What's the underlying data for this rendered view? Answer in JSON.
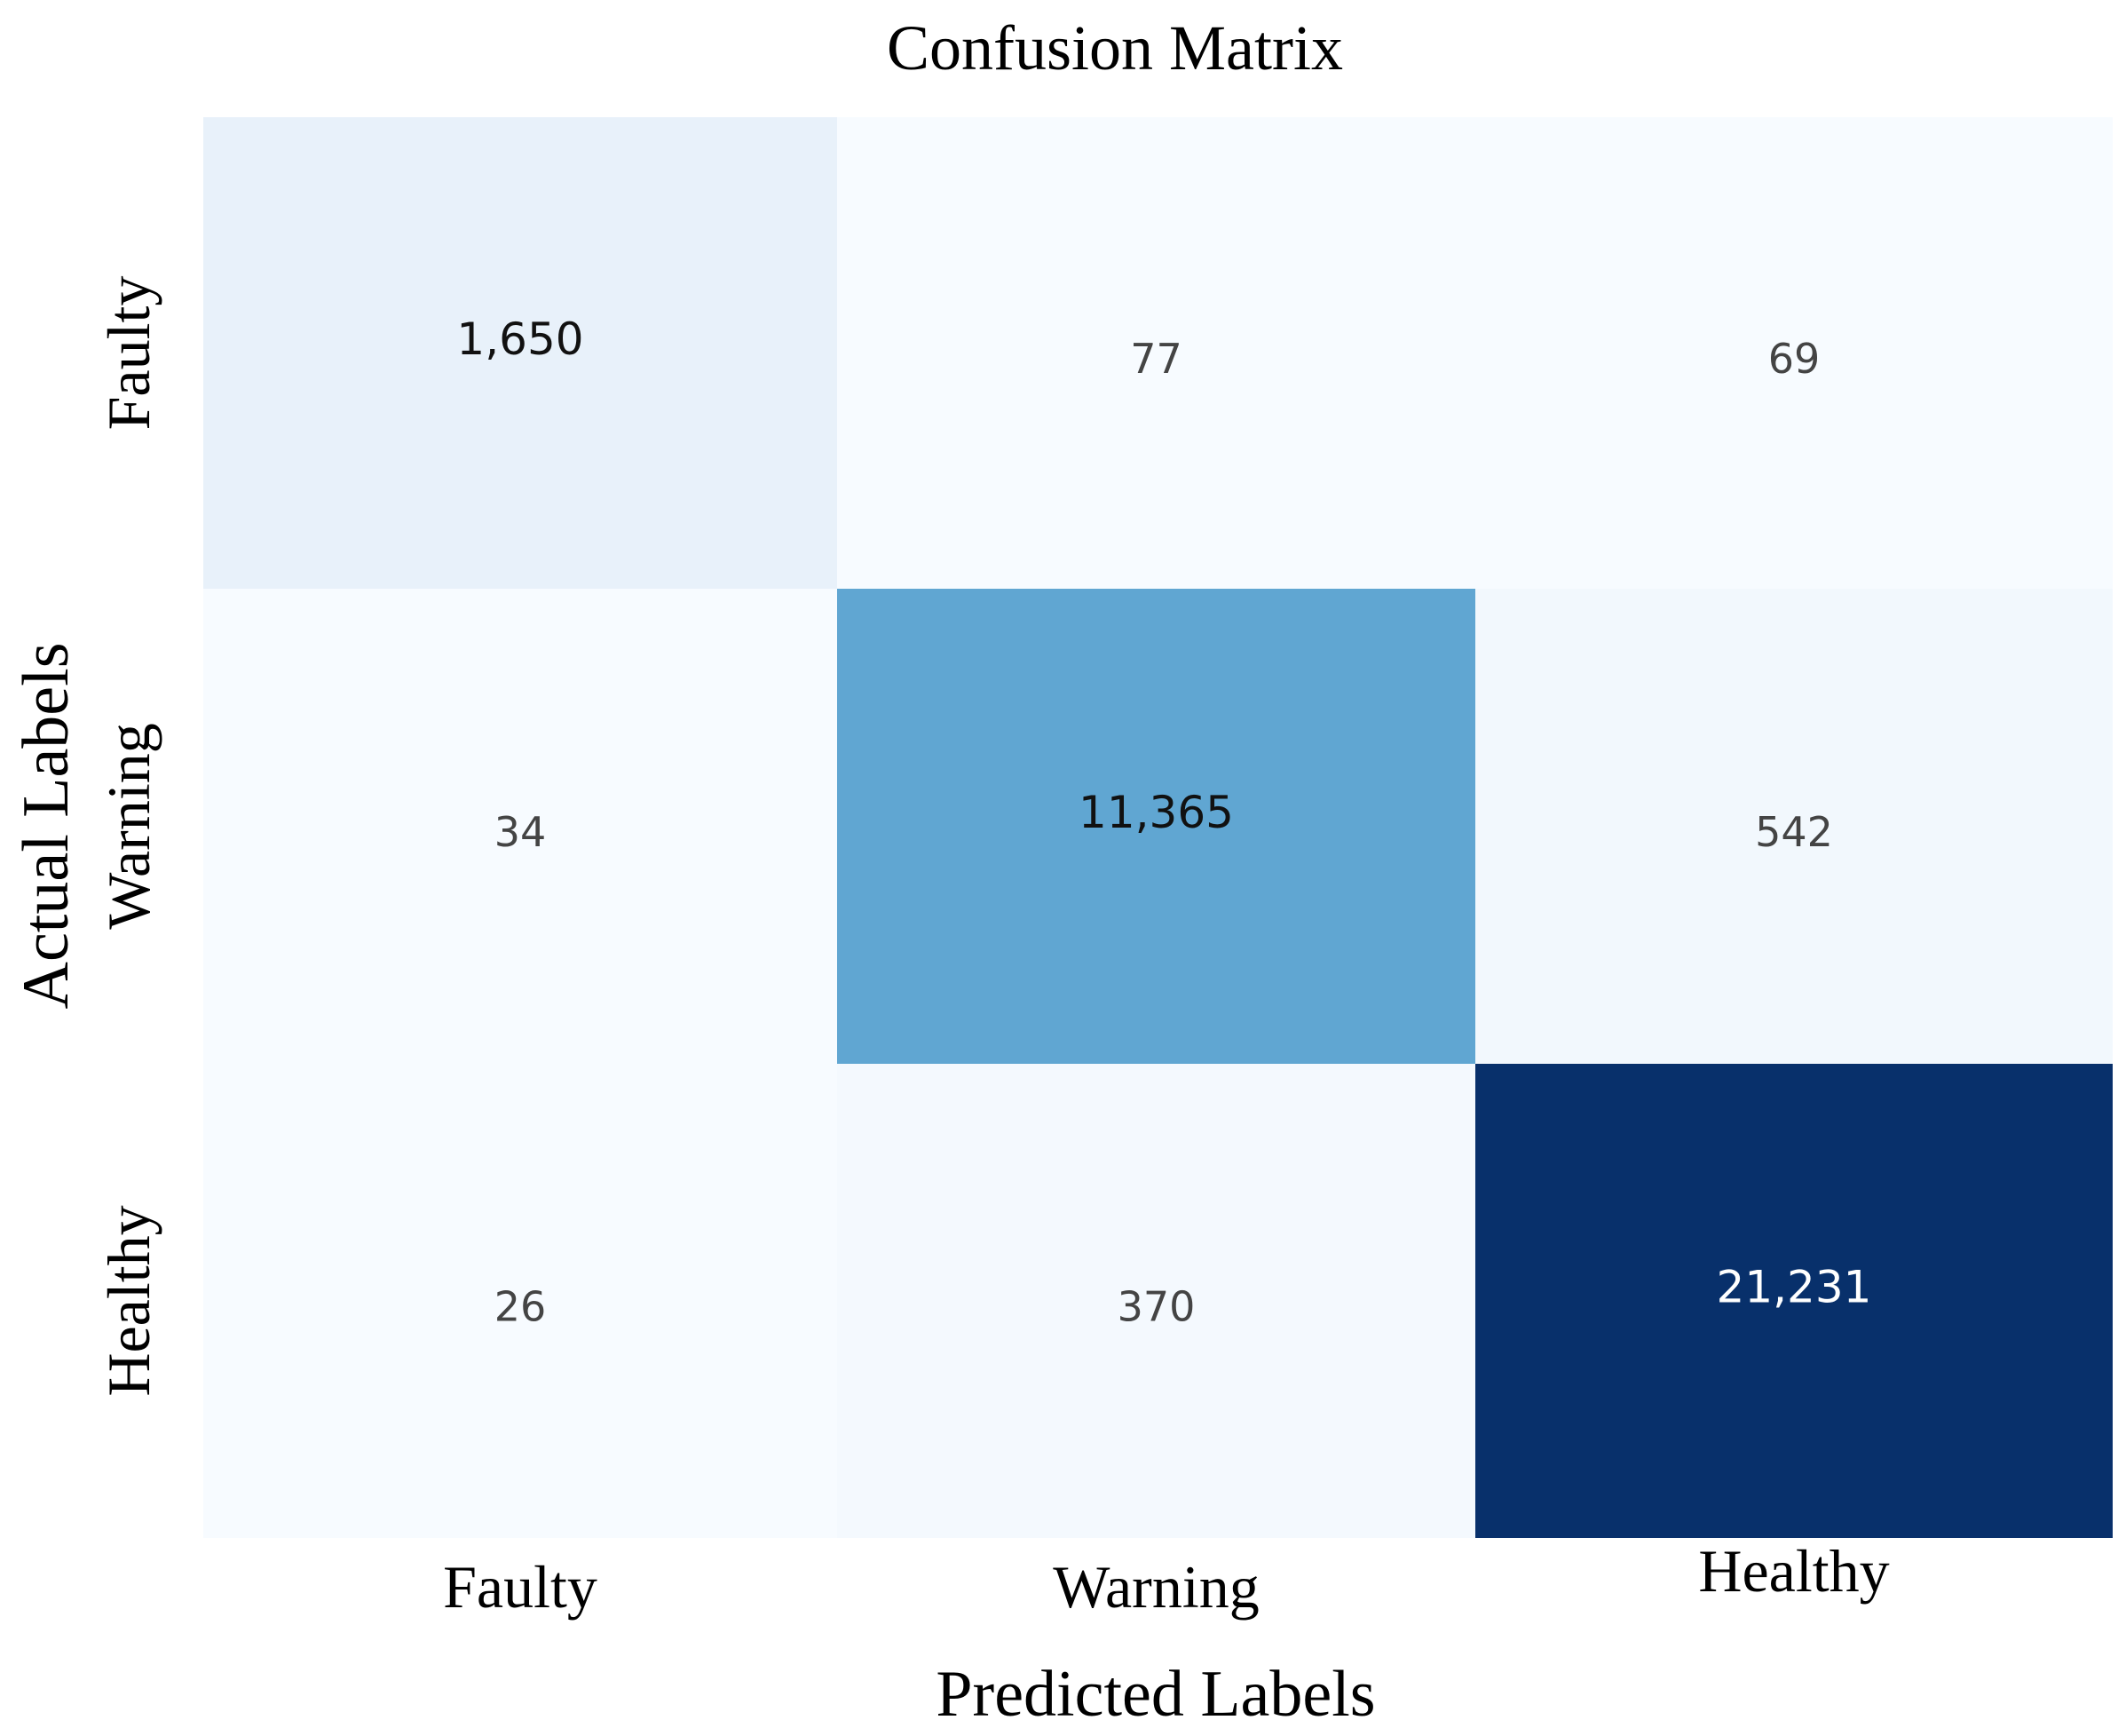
{
  "chart_data": {
    "type": "heatmap",
    "title": "Confusion Matrix",
    "xlabel": "Predicted Labels",
    "ylabel": "Actual Labels",
    "x_categories": [
      "Faulty",
      "Warning",
      "Healthy"
    ],
    "y_categories": [
      "Faulty",
      "Warning",
      "Healthy"
    ],
    "values": [
      [
        1650,
        77,
        69
      ],
      [
        34,
        11365,
        542
      ],
      [
        26,
        370,
        21231
      ]
    ],
    "value_labels": [
      [
        "1,650",
        "77",
        "69"
      ],
      [
        "34",
        "11,365",
        "542"
      ],
      [
        "26",
        "370",
        "21,231"
      ]
    ],
    "colormap": "Blues",
    "colors": {
      "lowest": "#f7fbff",
      "highest": "#08306b",
      "dark_text": "#000000",
      "light_text": "#ffffff"
    },
    "colorbar": false
  }
}
